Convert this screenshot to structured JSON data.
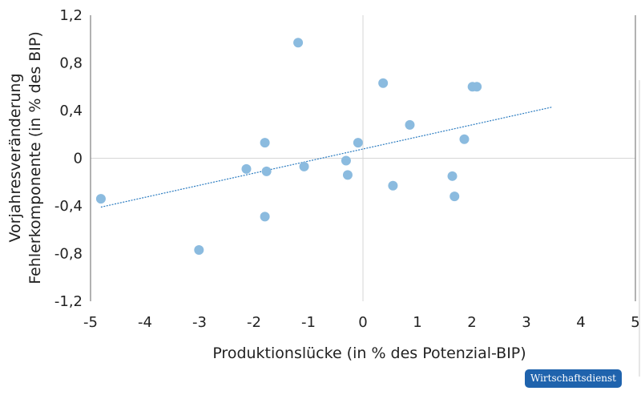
{
  "chart_data": {
    "type": "scatter",
    "xlabel": "Produktionslücke (in % des Potenzial-BIP)",
    "ylabel_lines": [
      "Vorjahresveränderung",
      "Fehlerkomponente (in % des BIP)"
    ],
    "xlim": [
      -5,
      5
    ],
    "ylim": [
      -1.2,
      1.2
    ],
    "x_ticks": [
      -5,
      -4,
      -3,
      -2,
      -1,
      0,
      1,
      2,
      3,
      4,
      5
    ],
    "x_tick_labels": [
      "-5",
      "-4",
      "-3",
      "-2",
      "-1",
      "0",
      "1",
      "2",
      "3",
      "4",
      "5"
    ],
    "y_ticks": [
      -1.2,
      -0.8,
      -0.4,
      0,
      0.4,
      0.8,
      1.2
    ],
    "y_tick_labels": [
      "-1,2",
      "-0,8",
      "-0,4",
      "0",
      "0,4",
      "0,8",
      "1,2"
    ],
    "grid": "zero lines only",
    "point_color": "#8bbbdf",
    "trend_color": "#2a7bc0",
    "points": [
      {
        "x": -4.81,
        "y": -0.34
      },
      {
        "x": -3.01,
        "y": -0.77
      },
      {
        "x": -2.14,
        "y": -0.09
      },
      {
        "x": -1.8,
        "y": 0.13
      },
      {
        "x": -1.77,
        "y": -0.11
      },
      {
        "x": -1.8,
        "y": -0.49
      },
      {
        "x": -1.19,
        "y": 0.97
      },
      {
        "x": -1.08,
        "y": -0.07
      },
      {
        "x": -0.31,
        "y": -0.02
      },
      {
        "x": -0.28,
        "y": -0.14
      },
      {
        "x": -0.09,
        "y": 0.13
      },
      {
        "x": 0.37,
        "y": 0.63
      },
      {
        "x": 0.55,
        "y": -0.23
      },
      {
        "x": 0.86,
        "y": 0.28
      },
      {
        "x": 1.64,
        "y": -0.15
      },
      {
        "x": 1.68,
        "y": -0.32
      },
      {
        "x": 1.86,
        "y": 0.16
      },
      {
        "x": 2.01,
        "y": 0.6
      },
      {
        "x": 2.09,
        "y": 0.6
      }
    ],
    "trendline": {
      "x": [
        -4.81,
        3.48
      ],
      "y": [
        -0.41,
        0.43
      ]
    }
  },
  "logo": "Wirtschaftsdienst"
}
